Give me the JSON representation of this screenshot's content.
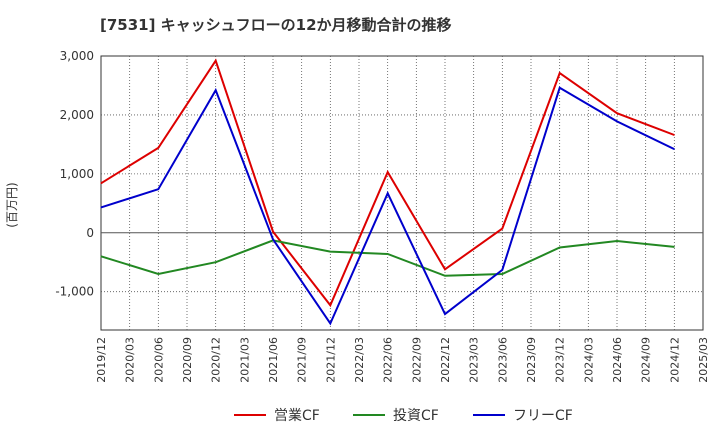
{
  "chart_data": {
    "type": "line",
    "title": "[7531]  キャッシュフローの12か月移動合計の推移",
    "xlabel": "",
    "ylabel": "(百万円)",
    "ylim": [
      -1650,
      3000
    ],
    "yticks": [
      3000,
      2000,
      1000,
      0,
      -1000
    ],
    "ytick_labels": [
      "3,000",
      "2,000",
      "1,000",
      "0",
      "-1,000"
    ],
    "xticks": [
      "2019/12",
      "2020/03",
      "2020/06",
      "2020/09",
      "2020/12",
      "2021/03",
      "2021/06",
      "2021/09",
      "2021/12",
      "2022/03",
      "2022/06",
      "2022/09",
      "2022/12",
      "2023/03",
      "2023/06",
      "2023/09",
      "2023/12",
      "2024/03",
      "2024/06",
      "2024/09",
      "2024/12",
      "2025/03"
    ],
    "grid": true,
    "legend_position": "bottom",
    "series": [
      {
        "name": "営業CF",
        "color": "#dd0000",
        "points": [
          {
            "x": "2019/12",
            "y": 840
          },
          {
            "x": "2020/06",
            "y": 1440
          },
          {
            "x": "2020/12",
            "y": 2920
          },
          {
            "x": "2021/06",
            "y": 20
          },
          {
            "x": "2021/12",
            "y": -1230
          },
          {
            "x": "2022/06",
            "y": 1030
          },
          {
            "x": "2022/12",
            "y": -620
          },
          {
            "x": "2023/06",
            "y": 70
          },
          {
            "x": "2023/12",
            "y": 2710
          },
          {
            "x": "2024/06",
            "y": 2030
          },
          {
            "x": "2024/12",
            "y": 1660
          }
        ]
      },
      {
        "name": "投資CF",
        "color": "#228822",
        "points": [
          {
            "x": "2019/12",
            "y": -400
          },
          {
            "x": "2020/06",
            "y": -700
          },
          {
            "x": "2020/12",
            "y": -500
          },
          {
            "x": "2021/06",
            "y": -130
          },
          {
            "x": "2021/12",
            "y": -320
          },
          {
            "x": "2022/06",
            "y": -360
          },
          {
            "x": "2022/12",
            "y": -730
          },
          {
            "x": "2023/06",
            "y": -700
          },
          {
            "x": "2023/12",
            "y": -250
          },
          {
            "x": "2024/06",
            "y": -140
          },
          {
            "x": "2024/12",
            "y": -240
          }
        ]
      },
      {
        "name": "フリーCF",
        "color": "#0000cc",
        "points": [
          {
            "x": "2019/12",
            "y": 430
          },
          {
            "x": "2020/06",
            "y": 740
          },
          {
            "x": "2020/12",
            "y": 2420
          },
          {
            "x": "2021/06",
            "y": -110
          },
          {
            "x": "2021/12",
            "y": -1540
          },
          {
            "x": "2022/06",
            "y": 670
          },
          {
            "x": "2022/12",
            "y": -1380
          },
          {
            "x": "2023/06",
            "y": -630
          },
          {
            "x": "2023/12",
            "y": 2460
          },
          {
            "x": "2024/06",
            "y": 1890
          },
          {
            "x": "2024/12",
            "y": 1420
          }
        ]
      }
    ]
  }
}
